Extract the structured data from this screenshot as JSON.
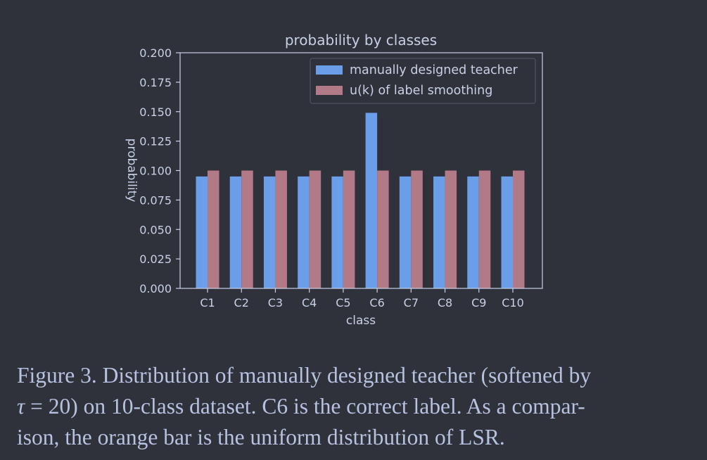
{
  "colors": {
    "background": "#2f323b",
    "axis": "#c8d0e6",
    "text": "#c8d0e6",
    "caption_text": "#b7c1e0",
    "series_teacher": "#6a9ee8",
    "series_lsr": "#b27a86",
    "legend_border": "#54596a"
  },
  "chart_data": {
    "type": "bar",
    "title": "probability by classes",
    "xlabel": "class",
    "ylabel": "probability",
    "categories": [
      "C1",
      "C2",
      "C3",
      "C4",
      "C5",
      "C6",
      "C7",
      "C8",
      "C9",
      "C10"
    ],
    "series": [
      {
        "name": "manually designed teacher",
        "color": "#6a9ee8",
        "values": [
          0.095,
          0.095,
          0.095,
          0.095,
          0.095,
          0.149,
          0.095,
          0.095,
          0.095,
          0.095
        ]
      },
      {
        "name": "u(k) of label smoothing",
        "color": "#b27a86",
        "values": [
          0.1,
          0.1,
          0.1,
          0.1,
          0.1,
          0.1,
          0.1,
          0.1,
          0.1,
          0.1
        ]
      }
    ],
    "ylim": [
      0,
      0.2
    ],
    "yticks": [
      "0.000",
      "0.025",
      "0.050",
      "0.075",
      "0.100",
      "0.125",
      "0.150",
      "0.175",
      "0.200"
    ],
    "grid": false,
    "legend_position": "top-right"
  },
  "caption": {
    "line1": "Figure 3. Distribution of manually designed teacher (softened by",
    "tau": "τ",
    "line2_rest": " = 20) on 10-class dataset. C6 is the correct label. As a compar-",
    "line3": "ison, the orange bar is the uniform distribution of LSR."
  }
}
